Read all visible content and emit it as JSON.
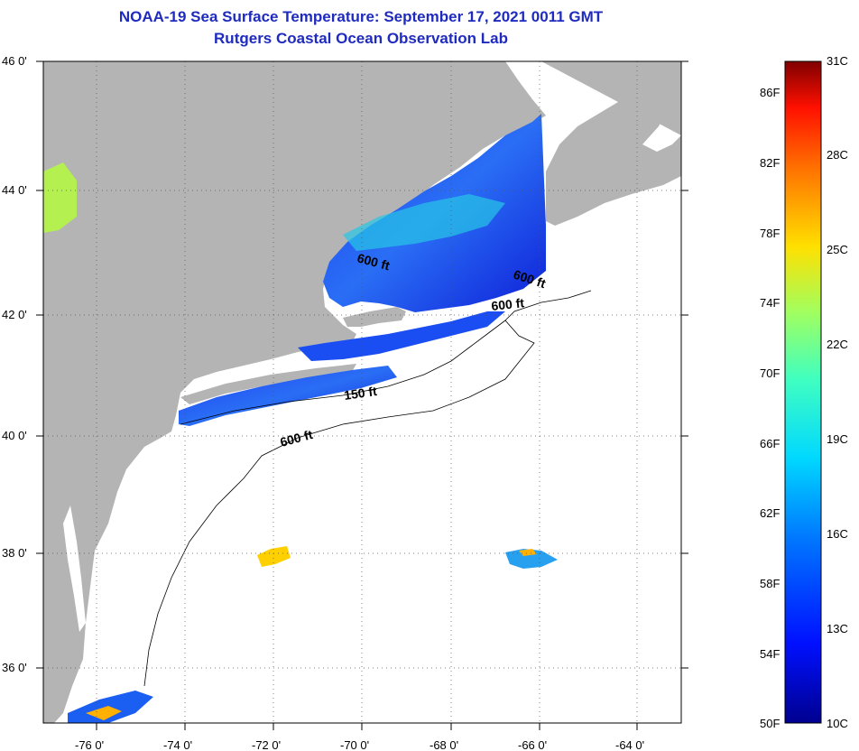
{
  "title": "NOAA-19 Sea Surface Temperature:  September 17, 2021 0011 GMT",
  "subtitle": "Rutgers Coastal Ocean Observation Lab",
  "lat_labels": [
    "46 0'",
    "44 0'",
    "42 0'",
    "40 0'",
    "38 0'",
    "36 0'"
  ],
  "lon_labels": [
    "-76 0'",
    "-74 0'",
    "-72 0'",
    "-70 0'",
    "-68 0'",
    "-66 0'",
    "-64 0'"
  ],
  "contour_labels": [
    "600 ft",
    "600 ft",
    "600 ft",
    "150 ft",
    "600 ft"
  ],
  "colorbar": {
    "fahrenheit": [
      "86F",
      "82F",
      "78F",
      "74F",
      "70F",
      "66F",
      "62F",
      "58F",
      "54F",
      "50F"
    ],
    "celsius": [
      "31C",
      "28C",
      "25C",
      "22C",
      "19C",
      "16C",
      "13C",
      "10C"
    ]
  },
  "colors": {
    "land": "#b4b4b4",
    "ocean": "#ffffff",
    "title": "#1f2bbf"
  }
}
